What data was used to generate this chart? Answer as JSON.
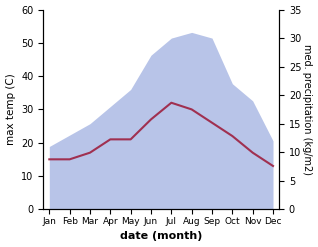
{
  "months": [
    "Jan",
    "Feb",
    "Mar",
    "Apr",
    "May",
    "Jun",
    "Jul",
    "Aug",
    "Sep",
    "Oct",
    "Nov",
    "Dec"
  ],
  "temperature": [
    15,
    15,
    17,
    21,
    21,
    27,
    32,
    30,
    26,
    22,
    17,
    13
  ],
  "precipitation": [
    11,
    13,
    15,
    18,
    21,
    27,
    30,
    31,
    30,
    22,
    19,
    12
  ],
  "temp_color": "#a03050",
  "precip_fill_color": "#b8c4e8",
  "xlabel": "date (month)",
  "ylabel_left": "max temp (C)",
  "ylabel_right": "med. precipitation (kg/m2)",
  "ylim_left": [
    0,
    60
  ],
  "ylim_right": [
    0,
    35
  ],
  "yticks_left": [
    0,
    10,
    20,
    30,
    40,
    50,
    60
  ],
  "yticks_right": [
    0,
    5,
    10,
    15,
    20,
    25,
    30,
    35
  ],
  "bg_color": "#ffffff",
  "line_width": 1.5
}
